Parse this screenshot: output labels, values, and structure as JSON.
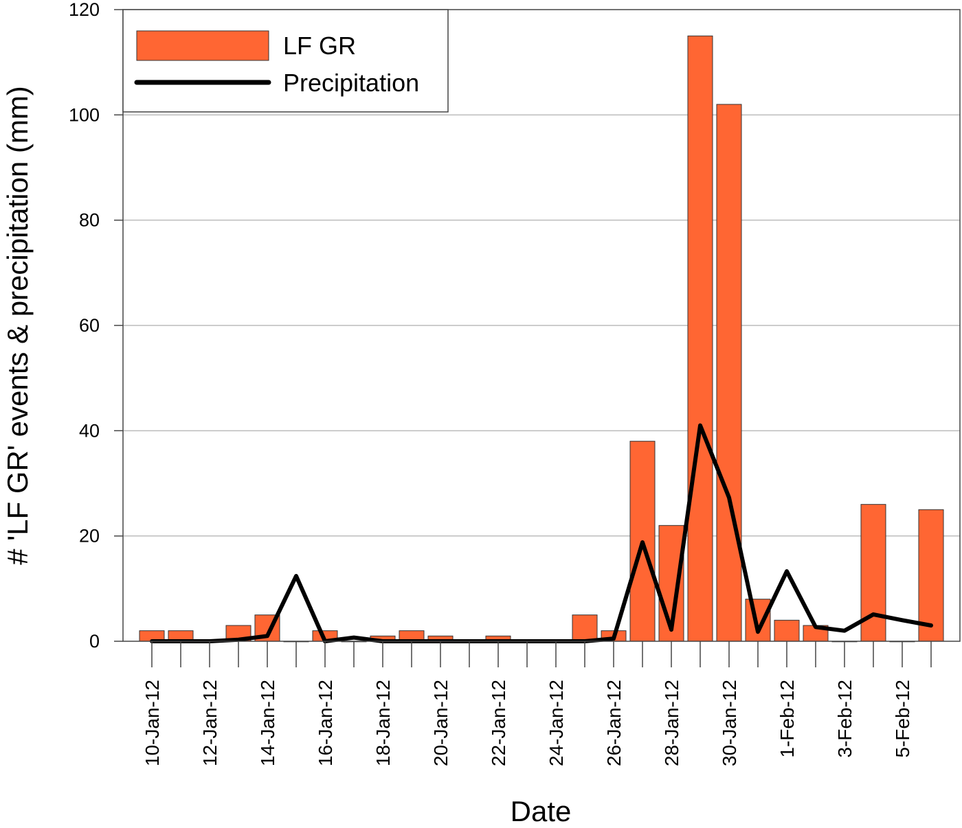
{
  "chart_data": {
    "type": "bar+line",
    "title": "",
    "xlabel": "Date",
    "ylabel": "# 'LF GR' events & precipitation (mm)",
    "ylim": [
      0,
      120
    ],
    "yticks": [
      0,
      20,
      40,
      60,
      80,
      100,
      120
    ],
    "grid": true,
    "legend_placement": "top-left",
    "categories": [
      "10-Jan-12",
      "11-Jan-12",
      "12-Jan-12",
      "13-Jan-12",
      "14-Jan-12",
      "15-Jan-12",
      "16-Jan-12",
      "17-Jan-12",
      "18-Jan-12",
      "19-Jan-12",
      "20-Jan-12",
      "21-Jan-12",
      "22-Jan-12",
      "23-Jan-12",
      "24-Jan-12",
      "25-Jan-12",
      "26-Jan-12",
      "27-Jan-12",
      "28-Jan-12",
      "29-Jan-12",
      "30-Jan-12",
      "31-Jan-12",
      "1-Feb-12",
      "2-Feb-12",
      "3-Feb-12",
      "4-Feb-12",
      "5-Feb-12",
      "6-Feb-12"
    ],
    "tick_labels": [
      "10-Jan-12",
      "12-Jan-12",
      "14-Jan-12",
      "16-Jan-12",
      "18-Jan-12",
      "20-Jan-12",
      "22-Jan-12",
      "24-Jan-12",
      "26-Jan-12",
      "28-Jan-12",
      "30-Jan-12",
      "1-Feb-12",
      "3-Feb-12",
      "5-Feb-12"
    ],
    "series": [
      {
        "name": "LF GR",
        "type": "bar",
        "color": "#ff6633",
        "values": [
          2,
          2,
          0,
          3,
          5,
          0,
          2,
          0,
          1,
          2,
          1,
          0,
          1,
          0,
          0,
          5,
          2,
          38,
          22,
          115,
          102,
          8,
          4,
          3,
          0,
          26,
          0,
          25
        ]
      },
      {
        "name": "Precipitation",
        "type": "line",
        "color": "#000000",
        "values": [
          0,
          0,
          0,
          0.3,
          1,
          12.4,
          0,
          0.7,
          0,
          0,
          0,
          0,
          0,
          0,
          0,
          0,
          0.5,
          18.8,
          2.2,
          41,
          27.3,
          1.8,
          13.3,
          2.7,
          2.0,
          5.1,
          4.0,
          3.0
        ]
      }
    ]
  }
}
